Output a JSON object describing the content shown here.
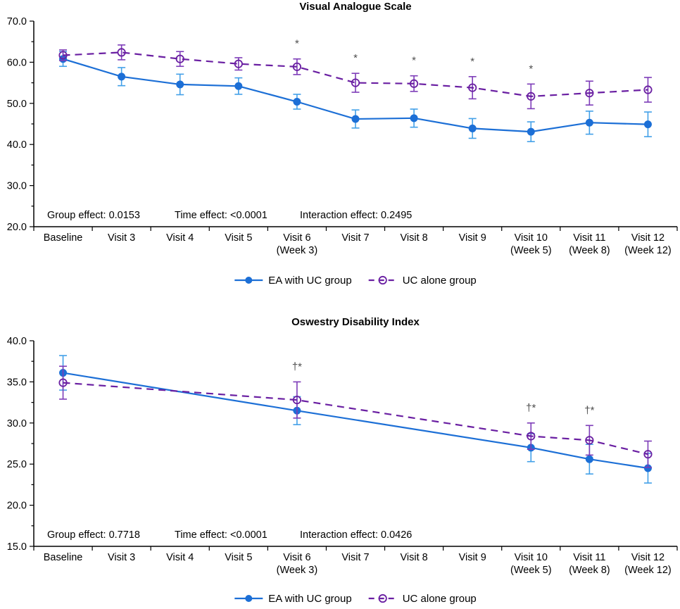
{
  "chart_data": [
    {
      "type": "line",
      "title": "Visual Analogue Scale",
      "categories": [
        "Baseline",
        "Visit 3",
        "Visit 4",
        "Visit 5",
        "Visit 6",
        "Visit 7",
        "Visit 8",
        "Visit 9",
        "Visit 10",
        "Visit 11",
        "Visit 12"
      ],
      "category_sublabels": [
        "",
        "",
        "",
        "",
        "(Week 3)",
        "",
        "",
        "",
        "(Week 5)",
        "(Week 8)",
        "(Week 12)"
      ],
      "ylim": [
        20,
        70
      ],
      "ytick_step": 10,
      "yminor_step": 5,
      "ytick_labels": [
        "70.0",
        "60.0",
        "50.0",
        "40.0",
        "30.0",
        "20.0"
      ],
      "grid": false,
      "legend_position": "bottom-center",
      "series": [
        {
          "name": "EA with UC group",
          "line_style": "solid",
          "marker": "filled-circle",
          "color": "#1c6fd6",
          "error_color": "#42a0e8",
          "values": [
            60.8,
            56.5,
            54.6,
            54.2,
            50.4,
            46.2,
            46.4,
            43.9,
            43.1,
            45.3,
            44.9
          ],
          "errors": [
            1.8,
            2.2,
            2.5,
            2.0,
            1.8,
            2.2,
            2.2,
            2.4,
            2.4,
            2.8,
            3.0
          ]
        },
        {
          "name": "UC alone group",
          "line_style": "dashed",
          "marker": "open-circle",
          "color": "#6a1fa2",
          "error_color": "#7d3cb8",
          "values": [
            61.7,
            62.4,
            60.8,
            59.6,
            58.9,
            55.0,
            54.8,
            53.8,
            51.7,
            52.5,
            53.3
          ],
          "errors": [
            1.3,
            1.8,
            1.8,
            1.5,
            1.9,
            2.3,
            1.9,
            2.7,
            3.0,
            2.9,
            3.0
          ]
        }
      ],
      "significance": [
        "",
        "",
        "",
        "",
        "*",
        "*",
        "*",
        "*",
        "*",
        "",
        ""
      ],
      "significance_color": "#4d4d4d",
      "stats_line": {
        "group": "Group effect: 0.0153",
        "time": "Time effect: <0.0001",
        "interaction": "Interaction effect: 0.2495"
      }
    },
    {
      "type": "line",
      "title": "Oswestry Disability Index",
      "categories": [
        "Baseline",
        "Visit 3",
        "Visit 4",
        "Visit 5",
        "Visit 6",
        "Visit 7",
        "Visit 8",
        "Visit 9",
        "Visit 10",
        "Visit 11",
        "Visit 12"
      ],
      "category_sublabels": [
        "",
        "",
        "",
        "",
        "(Week 3)",
        "",
        "",
        "",
        "(Week 5)",
        "(Week 8)",
        "(Week 12)"
      ],
      "ylim": [
        15,
        40
      ],
      "ytick_step": 5,
      "yminor_step": 2.5,
      "ytick_labels": [
        "40.0",
        "35.0",
        "30.0",
        "25.0",
        "20.0",
        "15.0"
      ],
      "grid": false,
      "legend_position": "bottom-center",
      "series": [
        {
          "name": "EA with UC group",
          "line_style": "solid",
          "marker": "filled-circle",
          "color": "#1c6fd6",
          "error_color": "#42a0e8",
          "values": [
            36.1,
            null,
            null,
            null,
            31.5,
            null,
            null,
            null,
            27.0,
            25.6,
            24.5
          ],
          "errors": [
            2.1,
            null,
            null,
            null,
            1.7,
            null,
            null,
            null,
            1.7,
            1.8,
            1.8
          ]
        },
        {
          "name": "UC alone group",
          "line_style": "dashed",
          "marker": "open-circle",
          "color": "#6a1fa2",
          "error_color": "#7d3cb8",
          "values": [
            34.9,
            null,
            null,
            null,
            32.8,
            null,
            null,
            null,
            28.4,
            27.9,
            26.2
          ],
          "errors": [
            2.0,
            null,
            null,
            null,
            2.2,
            null,
            null,
            null,
            1.6,
            1.8,
            1.6
          ]
        }
      ],
      "significance": [
        "",
        "",
        "",
        "",
        "†*",
        "",
        "",
        "",
        "†*",
        "†*",
        ""
      ],
      "significance_color": "#4d4d4d",
      "stats_line": {
        "group": "Group effect: 0.7718",
        "time": "Time effect: <0.0001",
        "interaction": "Interaction effect: 0.0426"
      }
    }
  ]
}
